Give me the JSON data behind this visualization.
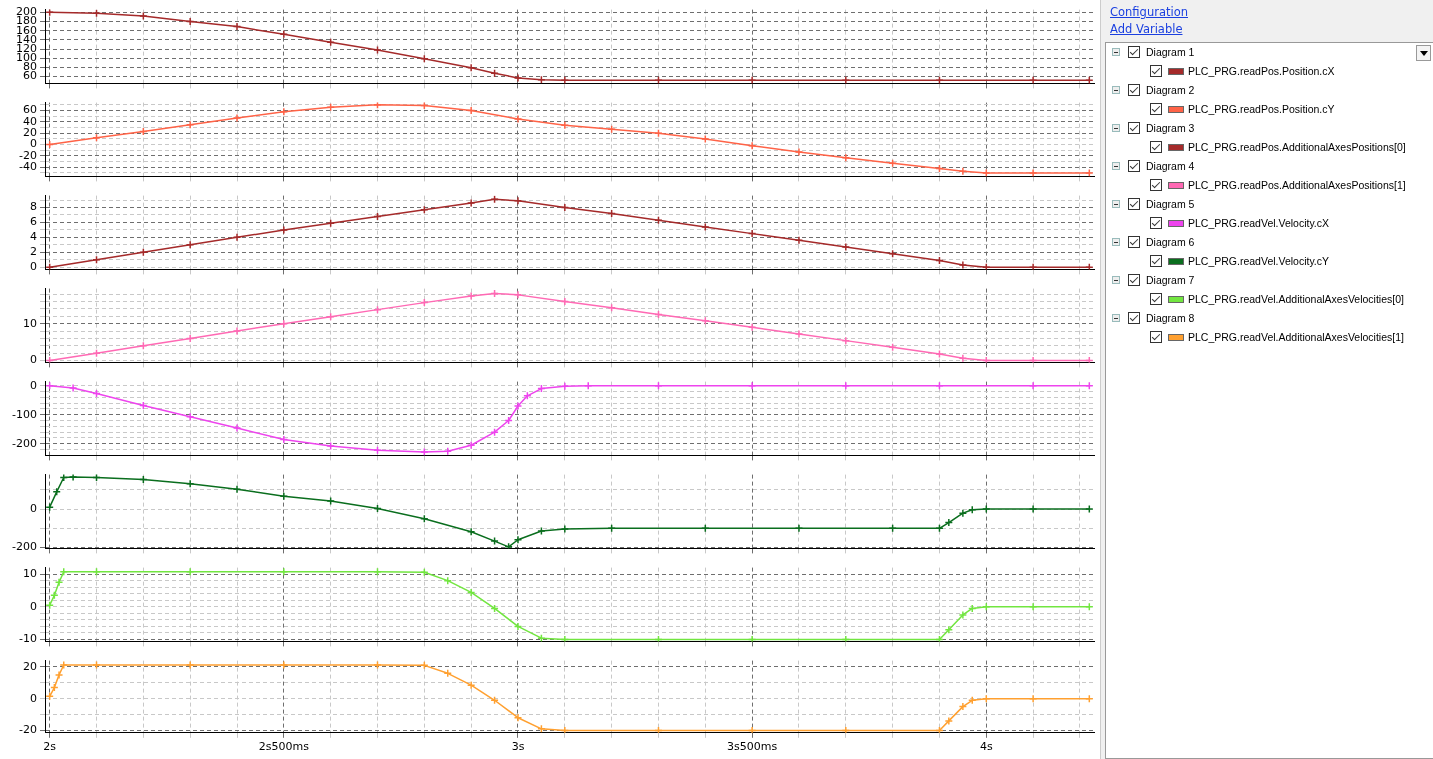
{
  "chart_data": [
    {
      "type": "line",
      "legend_title": "Diagram 1",
      "legend": "right",
      "annotations": [
        "Configuration",
        "Add Variable"
      ],
      "grid": true,
      "marker": "cross",
      "tick_labels": "y",
      "x": [
        2.0,
        2.1,
        2.2,
        2.3,
        2.4,
        2.5,
        2.6,
        2.7,
        2.8,
        2.9,
        2.95,
        3.0,
        3.05,
        3.1,
        3.3,
        3.5,
        3.7,
        3.9,
        4.1,
        4.22
      ],
      "series": [
        {
          "name": "PLC_PRG.readPos.Position.cX",
          "color": "#a52a2a",
          "values": [
            200,
            198,
            192,
            180,
            169,
            152,
            135,
            118,
            99,
            79,
            67,
            57,
            53,
            52,
            52,
            52,
            52,
            52,
            52,
            52
          ]
        }
      ],
      "xlim": [
        1.99,
        4.23
      ],
      "xticks": [
        {
          "value": 2.0,
          "label": null
        },
        {
          "value": 2.1,
          "label": null
        },
        {
          "value": 2.2,
          "label": null
        },
        {
          "value": 2.3,
          "label": null
        },
        {
          "value": 2.4,
          "label": null
        },
        {
          "value": 2.5,
          "label": null
        },
        {
          "value": 2.6,
          "label": null
        },
        {
          "value": 2.7,
          "label": null
        },
        {
          "value": 2.8,
          "label": null
        },
        {
          "value": 2.9,
          "label": null
        },
        {
          "value": 3.0,
          "label": null
        },
        {
          "value": 3.1,
          "label": null
        },
        {
          "value": 3.2,
          "label": null
        },
        {
          "value": 3.3,
          "label": null
        },
        {
          "value": 3.4,
          "label": null
        },
        {
          "value": 3.5,
          "label": null
        },
        {
          "value": 3.6,
          "label": null
        },
        {
          "value": 3.7,
          "label": null
        },
        {
          "value": 3.8,
          "label": null
        },
        {
          "value": 3.9,
          "label": null
        },
        {
          "value": 4.0,
          "label": null
        },
        {
          "value": 4.1,
          "label": null
        },
        {
          "value": 4.2,
          "label": null
        }
      ],
      "ylim": [
        45,
        206
      ],
      "yticks": [
        60,
        80,
        100,
        120,
        140,
        160,
        180,
        200
      ]
    },
    {
      "type": "line",
      "legend_title": "Diagram 2",
      "legend": "right",
      "grid": true,
      "marker": "cross",
      "tick_labels": "y",
      "x": [
        2.0,
        2.1,
        2.2,
        2.3,
        2.4,
        2.5,
        2.6,
        2.7,
        2.8,
        2.9,
        3.0,
        3.1,
        3.2,
        3.3,
        3.4,
        3.5,
        3.6,
        3.7,
        3.8,
        3.9,
        3.95,
        4.0,
        4.1,
        4.22
      ],
      "series": [
        {
          "name": "PLC_PRG.readPos.Position.cY",
          "color": "#ff6347",
          "values": [
            0,
            12,
            23,
            35,
            47,
            58,
            66,
            70,
            69,
            60,
            45,
            34,
            27,
            20,
            10,
            -2,
            -13,
            -23,
            -33,
            -42,
            -47,
            -50,
            -50,
            -50
          ]
        }
      ],
      "xlim": [
        1.99,
        4.23
      ],
      "xticks": [
        {
          "value": 2.0,
          "label": null
        },
        {
          "value": 2.1,
          "label": null
        },
        {
          "value": 2.2,
          "label": null
        },
        {
          "value": 2.3,
          "label": null
        },
        {
          "value": 2.4,
          "label": null
        },
        {
          "value": 2.5,
          "label": null
        },
        {
          "value": 2.6,
          "label": null
        },
        {
          "value": 2.7,
          "label": null
        },
        {
          "value": 2.8,
          "label": null
        },
        {
          "value": 2.9,
          "label": null
        },
        {
          "value": 3.0,
          "label": null
        },
        {
          "value": 3.1,
          "label": null
        },
        {
          "value": 3.2,
          "label": null
        },
        {
          "value": 3.3,
          "label": null
        },
        {
          "value": 3.4,
          "label": null
        },
        {
          "value": 3.5,
          "label": null
        },
        {
          "value": 3.6,
          "label": null
        },
        {
          "value": 3.7,
          "label": null
        },
        {
          "value": 3.8,
          "label": null
        },
        {
          "value": 3.9,
          "label": null
        },
        {
          "value": 4.0,
          "label": null
        },
        {
          "value": 4.1,
          "label": null
        },
        {
          "value": 4.2,
          "label": null
        }
      ],
      "ylim": [
        -56,
        74
      ],
      "yticks": [
        {
          "value": -50,
          "label": null
        },
        -40,
        {
          "value": -30,
          "label": null
        },
        -20,
        {
          "value": -10,
          "label": null
        },
        0,
        {
          "value": 10,
          "label": null
        },
        20,
        {
          "value": 30,
          "label": null
        },
        40,
        {
          "value": 50,
          "label": null
        },
        60,
        {
          "value": 70,
          "label": null
        }
      ]
    },
    {
      "type": "line",
      "legend_title": "Diagram 3",
      "legend": "right",
      "grid": true,
      "marker": "cross",
      "tick_labels": "y",
      "x": [
        2.0,
        2.1,
        2.2,
        2.3,
        2.4,
        2.5,
        2.6,
        2.7,
        2.8,
        2.9,
        2.95,
        3.0,
        3.1,
        3.2,
        3.3,
        3.4,
        3.5,
        3.6,
        3.7,
        3.8,
        3.9,
        3.95,
        4.0,
        4.1,
        4.22
      ],
      "series": [
        {
          "name": "PLC_PRG.readPos.AdditionalAxesPositions[0]",
          "color": "#a52a2a",
          "values": [
            0,
            1.0,
            2.0,
            3.0,
            4.0,
            5.0,
            5.9,
            6.8,
            7.7,
            8.6,
            9.1,
            8.9,
            8.0,
            7.2,
            6.3,
            5.4,
            4.5,
            3.6,
            2.7,
            1.8,
            0.9,
            0.3,
            0,
            0,
            0
          ]
        }
      ],
      "xlim": [
        1.99,
        4.23
      ],
      "xticks": [
        {
          "value": 2.0,
          "label": null
        },
        {
          "value": 2.1,
          "label": null
        },
        {
          "value": 2.2,
          "label": null
        },
        {
          "value": 2.3,
          "label": null
        },
        {
          "value": 2.4,
          "label": null
        },
        {
          "value": 2.5,
          "label": null
        },
        {
          "value": 2.6,
          "label": null
        },
        {
          "value": 2.7,
          "label": null
        },
        {
          "value": 2.8,
          "label": null
        },
        {
          "value": 2.9,
          "label": null
        },
        {
          "value": 3.0,
          "label": null
        },
        {
          "value": 3.1,
          "label": null
        },
        {
          "value": 3.2,
          "label": null
        },
        {
          "value": 3.3,
          "label": null
        },
        {
          "value": 3.4,
          "label": null
        },
        {
          "value": 3.5,
          "label": null
        },
        {
          "value": 3.6,
          "label": null
        },
        {
          "value": 3.7,
          "label": null
        },
        {
          "value": 3.8,
          "label": null
        },
        {
          "value": 3.9,
          "label": null
        },
        {
          "value": 4.0,
          "label": null
        },
        {
          "value": 4.1,
          "label": null
        },
        {
          "value": 4.2,
          "label": null
        }
      ],
      "ylim": [
        -0.3,
        9.6
      ],
      "yticks": [
        0,
        {
          "value": 1,
          "label": null
        },
        2,
        {
          "value": 3,
          "label": null
        },
        4,
        {
          "value": 5,
          "label": null
        },
        6,
        {
          "value": 7,
          "label": null
        },
        8,
        {
          "value": 9,
          "label": null
        }
      ]
    },
    {
      "type": "line",
      "legend_title": "Diagram 4",
      "legend": "right",
      "grid": true,
      "marker": "cross",
      "tick_labels": "y",
      "x": [
        2.0,
        2.1,
        2.2,
        2.3,
        2.4,
        2.5,
        2.6,
        2.7,
        2.8,
        2.9,
        2.95,
        3.0,
        3.1,
        3.2,
        3.3,
        3.4,
        3.5,
        3.6,
        3.7,
        3.8,
        3.9,
        3.95,
        4.0,
        4.1,
        4.22
      ],
      "series": [
        {
          "name": "PLC_PRG.readPos.AdditionalAxesPositions[1]",
          "color": "#ff69b4",
          "values": [
            0,
            2.0,
            4.0,
            6.0,
            8.0,
            10.0,
            11.9,
            13.8,
            15.7,
            17.5,
            18.2,
            17.8,
            16.0,
            14.3,
            12.5,
            10.8,
            9.0,
            7.2,
            5.4,
            3.6,
            1.8,
            0.6,
            0,
            0,
            0
          ]
        }
      ],
      "xlim": [
        1.99,
        4.23
      ],
      "xticks": [
        {
          "value": 2.0,
          "label": null
        },
        {
          "value": 2.1,
          "label": null
        },
        {
          "value": 2.2,
          "label": null
        },
        {
          "value": 2.3,
          "label": null
        },
        {
          "value": 2.4,
          "label": null
        },
        {
          "value": 2.5,
          "label": null
        },
        {
          "value": 2.6,
          "label": null
        },
        {
          "value": 2.7,
          "label": null
        },
        {
          "value": 2.8,
          "label": null
        },
        {
          "value": 2.9,
          "label": null
        },
        {
          "value": 3.0,
          "label": null
        },
        {
          "value": 3.1,
          "label": null
        },
        {
          "value": 3.2,
          "label": null
        },
        {
          "value": 3.3,
          "label": null
        },
        {
          "value": 3.4,
          "label": null
        },
        {
          "value": 3.5,
          "label": null
        },
        {
          "value": 3.6,
          "label": null
        },
        {
          "value": 3.7,
          "label": null
        },
        {
          "value": 3.8,
          "label": null
        },
        {
          "value": 3.9,
          "label": null
        },
        {
          "value": 4.0,
          "label": null
        },
        {
          "value": 4.1,
          "label": null
        },
        {
          "value": 4.2,
          "label": null
        }
      ],
      "ylim": [
        -0.5,
        19.5
      ],
      "yticks": [
        0,
        {
          "value": 2,
          "label": null
        },
        {
          "value": 4,
          "label": null
        },
        {
          "value": 6,
          "label": null
        },
        {
          "value": 8,
          "label": null
        },
        10,
        {
          "value": 12,
          "label": null
        },
        {
          "value": 14,
          "label": null
        },
        {
          "value": 16,
          "label": null
        },
        {
          "value": 18,
          "label": null
        }
      ]
    },
    {
      "type": "line",
      "legend_title": "Diagram 5",
      "legend": "right",
      "grid": true,
      "marker": "cross",
      "tick_labels": "y",
      "x": [
        2.0,
        2.05,
        2.1,
        2.2,
        2.3,
        2.4,
        2.5,
        2.6,
        2.7,
        2.8,
        2.85,
        2.9,
        2.95,
        2.98,
        3.0,
        3.02,
        3.05,
        3.1,
        3.15,
        3.3,
        3.5,
        3.7,
        3.9,
        4.1,
        4.22
      ],
      "series": [
        {
          "name": "PLC_PRG.readVel.Velocity.cX",
          "color": "#ee44ee",
          "values": [
            0,
            -8,
            -27,
            -68,
            -107,
            -146,
            -185,
            -208,
            -222,
            -228,
            -226,
            -205,
            -160,
            -120,
            -70,
            -35,
            -10,
            -2,
            0,
            0,
            0,
            0,
            0,
            0,
            0
          ]
        }
      ],
      "xlim": [
        1.99,
        4.23
      ],
      "xticks": [
        {
          "value": 2.0,
          "label": null
        },
        {
          "value": 2.1,
          "label": null
        },
        {
          "value": 2.2,
          "label": null
        },
        {
          "value": 2.3,
          "label": null
        },
        {
          "value": 2.4,
          "label": null
        },
        {
          "value": 2.5,
          "label": null
        },
        {
          "value": 2.6,
          "label": null
        },
        {
          "value": 2.7,
          "label": null
        },
        {
          "value": 2.8,
          "label": null
        },
        {
          "value": 2.9,
          "label": null
        },
        {
          "value": 3.0,
          "label": null
        },
        {
          "value": 3.1,
          "label": null
        },
        {
          "value": 3.2,
          "label": null
        },
        {
          "value": 3.3,
          "label": null
        },
        {
          "value": 3.4,
          "label": null
        },
        {
          "value": 3.5,
          "label": null
        },
        {
          "value": 3.6,
          "label": null
        },
        {
          "value": 3.7,
          "label": null
        },
        {
          "value": 3.8,
          "label": null
        },
        {
          "value": 3.9,
          "label": null
        },
        {
          "value": 4.0,
          "label": null
        },
        {
          "value": 4.1,
          "label": null
        },
        {
          "value": 4.2,
          "label": null
        }
      ],
      "ylim": [
        -240,
        14
      ],
      "yticks": [
        {
          "value": -220,
          "label": null
        },
        -200,
        {
          "value": -180,
          "label": null
        },
        {
          "value": -160,
          "label": null
        },
        {
          "value": -140,
          "label": null
        },
        {
          "value": -120,
          "label": null
        },
        -100,
        {
          "value": -80,
          "label": null
        },
        {
          "value": -60,
          "label": null
        },
        {
          "value": -40,
          "label": null
        },
        {
          "value": -20,
          "label": null
        },
        0
      ]
    },
    {
      "type": "line",
      "legend_title": "Diagram 6",
      "legend": "right",
      "grid": true,
      "marker": "cross",
      "tick_labels": "y",
      "x": [
        2.0,
        2.015,
        2.03,
        2.05,
        2.1,
        2.2,
        2.3,
        2.4,
        2.5,
        2.6,
        2.7,
        2.8,
        2.9,
        2.95,
        2.98,
        3.0,
        3.05,
        3.1,
        3.2,
        3.4,
        3.6,
        3.8,
        3.9,
        3.92,
        3.95,
        3.97,
        4.0,
        4.1,
        4.22
      ],
      "series": [
        {
          "name": "PLC_PRG.readVel.Velocity.cY",
          "color": "#0a6e1e",
          "values": [
            10,
            90,
            165,
            168,
            165,
            155,
            132,
            104,
            67,
            42,
            3,
            -50,
            -118,
            -167,
            -197,
            -160,
            -114,
            -104,
            -100,
            -100,
            -100,
            -100,
            -100,
            -70,
            -21,
            -3,
            0,
            0,
            0
          ]
        }
      ],
      "xlim": [
        1.99,
        4.23
      ],
      "xticks": [
        {
          "value": 2.0,
          "label": null
        },
        {
          "value": 2.1,
          "label": null
        },
        {
          "value": 2.2,
          "label": null
        },
        {
          "value": 2.3,
          "label": null
        },
        {
          "value": 2.4,
          "label": null
        },
        {
          "value": 2.5,
          "label": null
        },
        {
          "value": 2.6,
          "label": null
        },
        {
          "value": 2.7,
          "label": null
        },
        {
          "value": 2.8,
          "label": null
        },
        {
          "value": 2.9,
          "label": null
        },
        {
          "value": 3.0,
          "label": null
        },
        {
          "value": 3.1,
          "label": null
        },
        {
          "value": 3.2,
          "label": null
        },
        {
          "value": 3.3,
          "label": null
        },
        {
          "value": 3.4,
          "label": null
        },
        {
          "value": 3.5,
          "label": null
        },
        {
          "value": 3.6,
          "label": null
        },
        {
          "value": 3.7,
          "label": null
        },
        {
          "value": 3.8,
          "label": null
        },
        {
          "value": 3.9,
          "label": null
        },
        {
          "value": 4.0,
          "label": null
        },
        {
          "value": 4.1,
          "label": null
        },
        {
          "value": 4.2,
          "label": null
        }
      ],
      "ylim": [
        -205,
        180
      ],
      "yticks": [
        -200,
        {
          "value": -100,
          "label": null
        },
        0,
        {
          "value": 100,
          "label": null
        }
      ]
    },
    {
      "type": "line",
      "legend_title": "Diagram 7",
      "legend": "right",
      "grid": true,
      "marker": "cross",
      "tick_labels": "y",
      "x": [
        2.0,
        2.01,
        2.02,
        2.03,
        2.1,
        2.3,
        2.5,
        2.7,
        2.8,
        2.85,
        2.9,
        2.95,
        3.0,
        3.05,
        3.1,
        3.3,
        3.5,
        3.7,
        3.9,
        3.92,
        3.95,
        3.97,
        4.0,
        4.1,
        4.22
      ],
      "series": [
        {
          "name": "PLC_PRG.readVel.AdditionalAxesVelocities[0]",
          "color": "#72e640",
          "values": [
            0.5,
            3.5,
            7.5,
            10.7,
            10.7,
            10.7,
            10.7,
            10.7,
            10.6,
            8,
            4.4,
            -0.5,
            -6,
            -9.6,
            -10,
            -10,
            -10,
            -10,
            -10,
            -7,
            -2.5,
            -0.5,
            0,
            0,
            0
          ]
        }
      ],
      "xlim": [
        1.99,
        4.23
      ],
      "xticks": [
        {
          "value": 2.0,
          "label": null
        },
        {
          "value": 2.1,
          "label": null
        },
        {
          "value": 2.2,
          "label": null
        },
        {
          "value": 2.3,
          "label": null
        },
        {
          "value": 2.4,
          "label": null
        },
        {
          "value": 2.5,
          "label": null
        },
        {
          "value": 2.6,
          "label": null
        },
        {
          "value": 2.7,
          "label": null
        },
        {
          "value": 2.8,
          "label": null
        },
        {
          "value": 2.9,
          "label": null
        },
        {
          "value": 3.0,
          "label": null
        },
        {
          "value": 3.1,
          "label": null
        },
        {
          "value": 3.2,
          "label": null
        },
        {
          "value": 3.3,
          "label": null
        },
        {
          "value": 3.4,
          "label": null
        },
        {
          "value": 3.5,
          "label": null
        },
        {
          "value": 3.6,
          "label": null
        },
        {
          "value": 3.7,
          "label": null
        },
        {
          "value": 3.8,
          "label": null
        },
        {
          "value": 3.9,
          "label": null
        },
        {
          "value": 4.0,
          "label": null
        },
        {
          "value": 4.1,
          "label": null
        },
        {
          "value": 4.2,
          "label": null
        }
      ],
      "ylim": [
        -10.6,
        12
      ],
      "yticks": [
        -10,
        {
          "value": -8,
          "label": null
        },
        {
          "value": -6,
          "label": null
        },
        {
          "value": -4,
          "label": null
        },
        {
          "value": -2,
          "label": null
        },
        0,
        {
          "value": 2,
          "label": null
        },
        {
          "value": 4,
          "label": null
        },
        {
          "value": 6,
          "label": null
        },
        {
          "value": 8,
          "label": null
        },
        10
      ]
    },
    {
      "type": "line",
      "legend_title": "Diagram 8",
      "legend": "right",
      "grid": true,
      "marker": "cross",
      "x": [
        2.0,
        2.01,
        2.02,
        2.03,
        2.1,
        2.3,
        2.5,
        2.7,
        2.8,
        2.85,
        2.9,
        2.95,
        3.0,
        3.05,
        3.1,
        3.3,
        3.5,
        3.7,
        3.9,
        3.92,
        3.95,
        3.97,
        4.0,
        4.1,
        4.22
      ],
      "series": [
        {
          "name": "PLC_PRG.readVel.AdditionalAxesVelocities[1]",
          "color": "#ffa030",
          "values": [
            1.5,
            7,
            15,
            21.2,
            21.2,
            21.2,
            21.2,
            21.2,
            21,
            16,
            8.5,
            -1,
            -12,
            -19,
            -20,
            -20,
            -20,
            -20,
            -20,
            -14,
            -5,
            -1,
            0,
            0,
            0
          ]
        }
      ],
      "xlim": [
        1.99,
        4.23
      ],
      "xticks": [
        {
          "value": 2.0,
          "label": "2s"
        },
        {
          "value": 2.1,
          "label": null
        },
        {
          "value": 2.2,
          "label": null
        },
        {
          "value": 2.3,
          "label": null
        },
        {
          "value": 2.4,
          "label": null
        },
        {
          "value": 2.5,
          "label": "2s500ms"
        },
        {
          "value": 2.6,
          "label": null
        },
        {
          "value": 2.7,
          "label": null
        },
        {
          "value": 2.8,
          "label": null
        },
        {
          "value": 2.9,
          "label": null
        },
        {
          "value": 3.0,
          "label": "3s"
        },
        {
          "value": 3.1,
          "label": null
        },
        {
          "value": 3.2,
          "label": null
        },
        {
          "value": 3.3,
          "label": null
        },
        {
          "value": 3.4,
          "label": null
        },
        {
          "value": 3.5,
          "label": "3s500ms"
        },
        {
          "value": 3.6,
          "label": null
        },
        {
          "value": 3.7,
          "label": null
        },
        {
          "value": 3.8,
          "label": null
        },
        {
          "value": 3.9,
          "label": null
        },
        {
          "value": 4.0,
          "label": "4s"
        },
        {
          "value": 4.1,
          "label": null
        },
        {
          "value": 4.2,
          "label": null
        }
      ],
      "ylim": [
        -21.5,
        24
      ],
      "yticks": [
        -20,
        {
          "value": -10,
          "label": null
        },
        0,
        {
          "value": 10,
          "label": null
        },
        20
      ]
    }
  ]
}
